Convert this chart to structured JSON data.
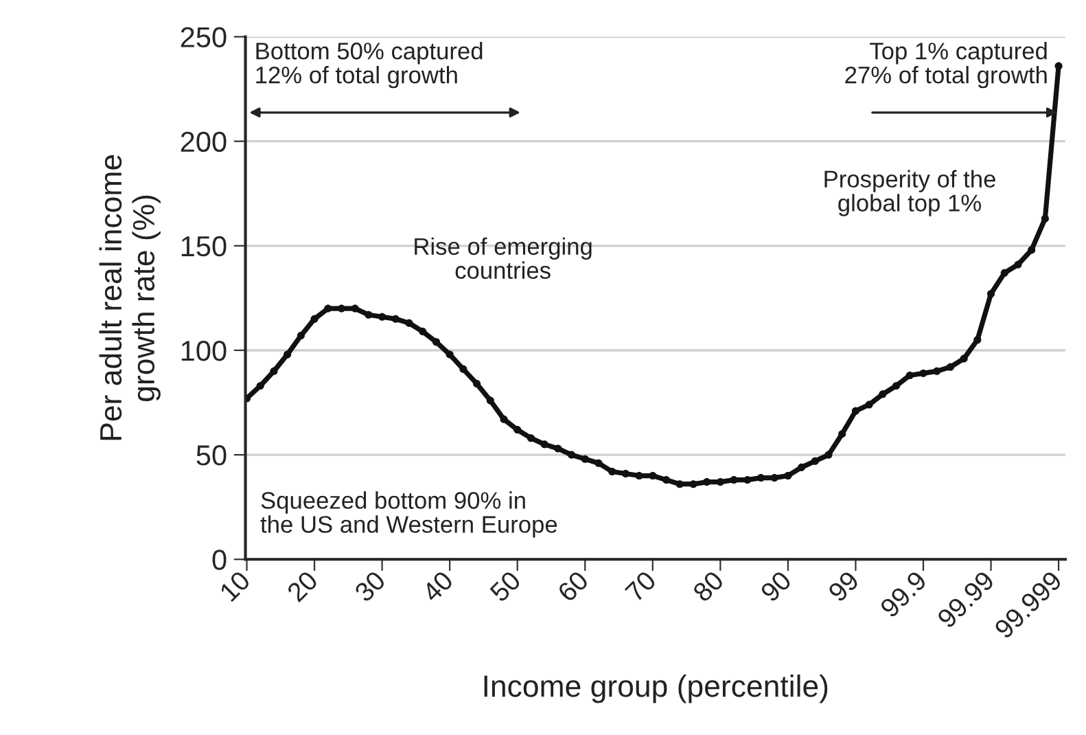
{
  "chart_data": {
    "type": "line",
    "xlabel": "Income group (percentile)",
    "ylabel": "Per adult real income\ngrowth rate (%)",
    "categories": [
      "10",
      null,
      null,
      null,
      null,
      "20",
      null,
      null,
      null,
      null,
      "30",
      null,
      null,
      null,
      null,
      "40",
      null,
      null,
      null,
      null,
      "50",
      null,
      null,
      null,
      null,
      "60",
      null,
      null,
      null,
      null,
      "70",
      null,
      null,
      null,
      null,
      "80",
      null,
      null,
      null,
      null,
      "90",
      null,
      null,
      null,
      null,
      "99",
      null,
      null,
      null,
      null,
      "99.9",
      null,
      null,
      null,
      null,
      "99.99",
      null,
      null,
      null,
      null,
      "99.999"
    ],
    "series": [
      {
        "color": "#111111",
        "values": [
          77,
          83,
          90,
          98,
          107,
          115,
          120,
          120,
          120,
          117,
          116,
          115,
          113,
          109,
          104,
          98,
          91,
          84,
          76,
          67,
          62,
          58,
          55,
          53,
          50,
          48,
          46,
          42,
          41,
          40,
          40,
          38,
          36,
          36,
          37,
          37,
          38,
          38,
          39,
          39,
          40,
          44,
          47,
          50,
          60,
          71,
          74,
          79,
          83,
          88,
          89,
          90,
          92,
          96,
          105,
          127,
          137,
          141,
          148,
          163,
          236
        ]
      }
    ],
    "ylim": [
      0,
      250
    ],
    "yticks": [
      0,
      50,
      100,
      150,
      200,
      250
    ],
    "grid": "y",
    "marker": "circle",
    "line_style": "solid",
    "annotations": [
      "Bottom 50% captured\n12% of total growth",
      "Top 1% captured\n27% of total growth",
      "Rise of emerging\ncountries",
      "Prosperity of the\nglobal top 1%",
      "Squeezed bottom 90% in\nthe US and Western Europe"
    ]
  }
}
